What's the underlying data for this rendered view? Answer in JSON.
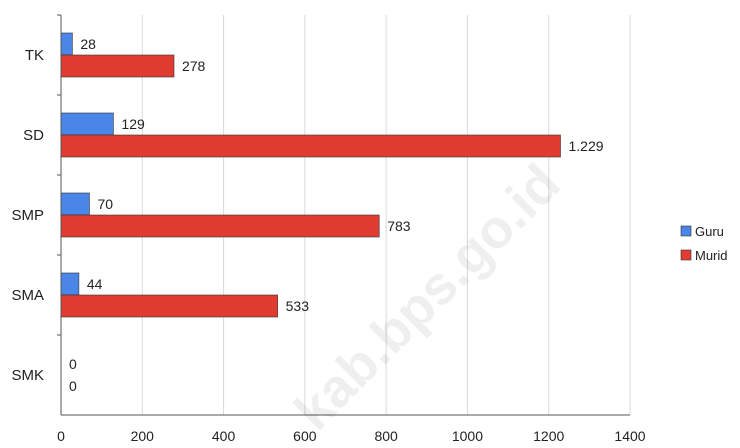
{
  "chart_data": {
    "type": "bar",
    "orientation": "horizontal",
    "categories": [
      "TK",
      "SD",
      "SMP",
      "SMA",
      "SMK"
    ],
    "series": [
      {
        "name": "Guru",
        "color": "#4a86e8",
        "values": [
          28,
          129,
          70,
          44,
          0
        ],
        "labels": [
          "28",
          "129",
          "70",
          "44",
          "0"
        ]
      },
      {
        "name": "Murid",
        "color": "#e03c31",
        "values": [
          278,
          1229,
          783,
          533,
          0
        ],
        "labels": [
          "278",
          "1.229",
          "783",
          "533",
          "0"
        ]
      }
    ],
    "xticks": [
      "0",
      "200",
      "400",
      "600",
      "800",
      "1000",
      "1200",
      "1400"
    ],
    "xlim": [
      0,
      1400
    ],
    "grid": true,
    "legend": "right",
    "title": "",
    "xlabel": "",
    "ylabel": ""
  },
  "watermark": "kab.bps.go.id"
}
